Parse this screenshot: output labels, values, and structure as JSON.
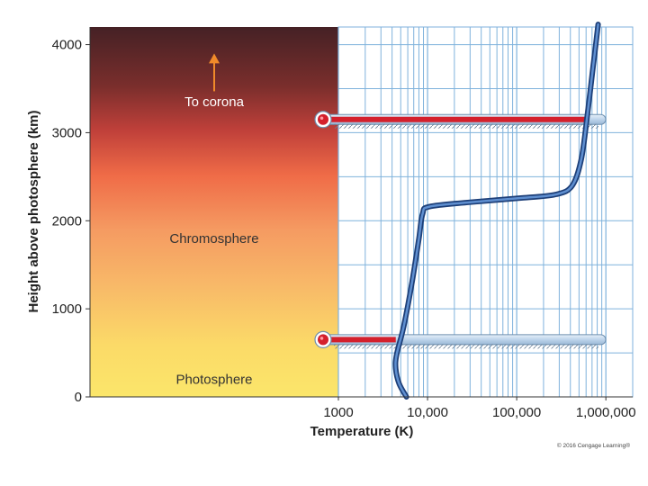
{
  "chart_data": {
    "type": "line",
    "xlabel": "Temperature (K)",
    "ylabel": "Height above photosphere (km)",
    "x_scale": "log",
    "xlim": [
      1000,
      2000000
    ],
    "ylim": [
      0,
      4200
    ],
    "x_ticks": [
      {
        "value": 1000,
        "label": "1000"
      },
      {
        "value": 10000,
        "label": "10,000"
      },
      {
        "value": 100000,
        "label": "100,000"
      },
      {
        "value": 1000000,
        "label": "1,000,000"
      }
    ],
    "y_ticks": [
      {
        "value": 0,
        "label": "0"
      },
      {
        "value": 1000,
        "label": "1000"
      },
      {
        "value": 2000,
        "label": "2000"
      },
      {
        "value": 3000,
        "label": "3000"
      },
      {
        "value": 4000,
        "label": "4000"
      }
    ],
    "grid": true,
    "series": [
      {
        "color": "#2f5fa8",
        "points": [
          {
            "x": 5800,
            "y": 0
          },
          {
            "x": 4800,
            "y": 150
          },
          {
            "x": 4400,
            "y": 320
          },
          {
            "x": 4500,
            "y": 480
          },
          {
            "x": 5400,
            "y": 800
          },
          {
            "x": 6700,
            "y": 1300
          },
          {
            "x": 8000,
            "y": 1800
          },
          {
            "x": 8800,
            "y": 2080
          },
          {
            "x": 10500,
            "y": 2160
          },
          {
            "x": 30000,
            "y": 2210
          },
          {
            "x": 120000,
            "y": 2260
          },
          {
            "x": 280000,
            "y": 2300
          },
          {
            "x": 420000,
            "y": 2400
          },
          {
            "x": 530000,
            "y": 2700
          },
          {
            "x": 620000,
            "y": 3200
          },
          {
            "x": 720000,
            "y": 3750
          },
          {
            "x": 820000,
            "y": 4230
          }
        ]
      }
    ],
    "thermometers": [
      {
        "height": 3150,
        "reading": 600000
      },
      {
        "height": 650,
        "reading": 4400
      }
    ],
    "regions": [
      {
        "label": "Photosphere",
        "height": 200
      },
      {
        "label": "Chromosphere",
        "height": 1800
      },
      {
        "label": "To corona",
        "height": 3350
      }
    ]
  },
  "copyright": "© 2016 Cengage Learning®",
  "colors": {
    "grid": "#7fb2dc",
    "curve": "#2f5fa8",
    "thermo_red": "#d4202c",
    "thermo_tube": "#c9dcee",
    "arrow": "#f08a2a"
  }
}
